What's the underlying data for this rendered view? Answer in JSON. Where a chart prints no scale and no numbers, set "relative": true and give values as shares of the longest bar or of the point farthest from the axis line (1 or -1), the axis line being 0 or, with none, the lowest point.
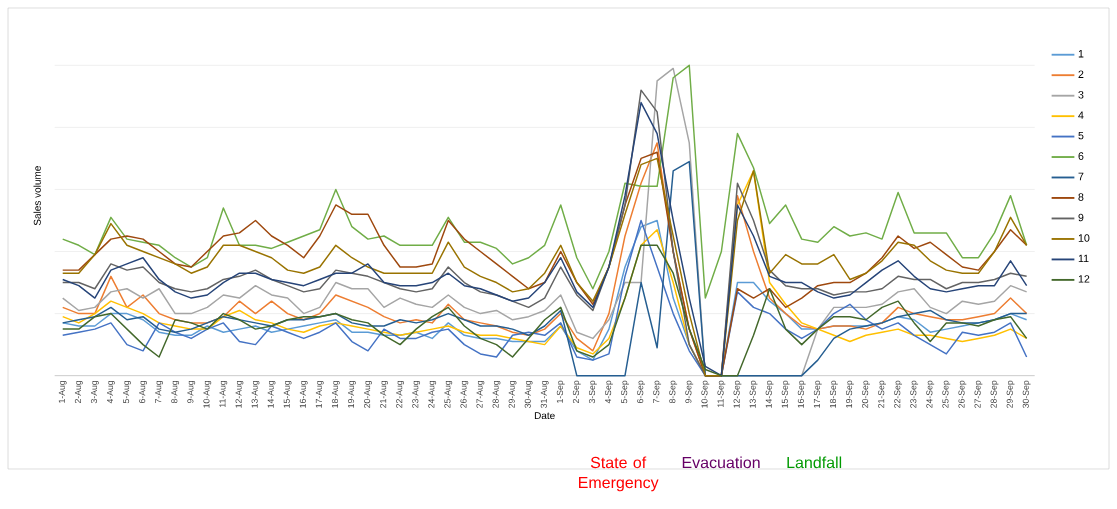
{
  "chart_data": {
    "type": "line",
    "xlabel": "Date",
    "ylabel": "Sales volume",
    "relative": true,
    "grid": "y",
    "legend": "right",
    "categories": [
      "1-Aug",
      "2-Aug",
      "3-Aug",
      "4-Aug",
      "5-Aug",
      "6-Aug",
      "7-Aug",
      "8-Aug",
      "9-Aug",
      "10-Aug",
      "11-Aug",
      "12-Aug",
      "13-Aug",
      "14-Aug",
      "15-Aug",
      "16-Aug",
      "17-Aug",
      "18-Aug",
      "19-Aug",
      "20-Aug",
      "21-Aug",
      "22-Aug",
      "23-Aug",
      "24-Aug",
      "25-Aug",
      "26-Aug",
      "27-Aug",
      "28-Aug",
      "29-Aug",
      "30-Aug",
      "31-Aug",
      "1-Sep",
      "2-Sep",
      "3-Sep",
      "4-Sep",
      "5-Sep",
      "6-Sep",
      "7-Sep",
      "8-Sep",
      "9-Sep",
      "10-Sep",
      "11-Sep",
      "12-Sep",
      "13-Sep",
      "14-Sep",
      "15-Sep",
      "16-Sep",
      "17-Sep",
      "18-Sep",
      "19-Sep",
      "20-Sep",
      "21-Sep",
      "22-Sep",
      "23-Sep",
      "24-Sep",
      "25-Sep",
      "26-Sep",
      "27-Sep",
      "28-Sep",
      "29-Sep",
      "30-Sep"
    ],
    "series": [
      {
        "name": "1",
        "color": "#5b9bd5",
        "values": [
          0.17,
          0.16,
          0.16,
          0.2,
          0.2,
          0.18,
          0.14,
          0.13,
          0.13,
          0.16,
          0.14,
          0.15,
          0.16,
          0.14,
          0.15,
          0.16,
          0.17,
          0.18,
          0.14,
          0.14,
          0.13,
          0.13,
          0.14,
          0.12,
          0.17,
          0.13,
          0.12,
          0.12,
          0.11,
          0.11,
          0.11,
          0.16,
          0.08,
          0.05,
          0.15,
          0.35,
          0.48,
          0.5,
          0.25,
          0.1,
          0,
          0,
          0.3,
          0.3,
          0.24,
          0.2,
          0.15,
          0.15,
          0.16,
          0.16,
          0.16,
          0.17,
          0.19,
          0.18,
          0.14,
          0.15,
          0.16,
          0.17,
          0.18,
          0.2,
          0.18
        ]
      },
      {
        "name": "2",
        "color": "#ed7d31",
        "values": [
          0.22,
          0.2,
          0.2,
          0.32,
          0.22,
          0.26,
          0.2,
          0.18,
          0.17,
          0.17,
          0.19,
          0.24,
          0.2,
          0.24,
          0.2,
          0.18,
          0.2,
          0.26,
          0.24,
          0.22,
          0.19,
          0.17,
          0.18,
          0.17,
          0.23,
          0.18,
          0.17,
          0.16,
          0.14,
          0.13,
          0.15,
          0.2,
          0.12,
          0.08,
          0.2,
          0.45,
          0.62,
          0.75,
          0.4,
          0.15,
          0,
          0,
          0.58,
          0.4,
          0.25,
          0.2,
          0.16,
          0.15,
          0.16,
          0.16,
          0.15,
          0.17,
          0.22,
          0.2,
          0.19,
          0.18,
          0.18,
          0.19,
          0.2,
          0.25,
          0.2
        ]
      },
      {
        "name": "3",
        "color": "#a5a5a5",
        "values": [
          0.25,
          0.21,
          0.22,
          0.27,
          0.28,
          0.25,
          0.28,
          0.2,
          0.2,
          0.22,
          0.26,
          0.25,
          0.29,
          0.26,
          0.25,
          0.2,
          0.22,
          0.3,
          0.28,
          0.28,
          0.22,
          0.25,
          0.23,
          0.22,
          0.26,
          0.22,
          0.2,
          0.21,
          0.18,
          0.19,
          0.21,
          0.26,
          0.14,
          0.12,
          0.18,
          0.3,
          0.3,
          0.95,
          0.99,
          0.75,
          0,
          0,
          0,
          0,
          0,
          0,
          0,
          0.15,
          0.22,
          0.22,
          0.22,
          0.23,
          0.27,
          0.28,
          0.22,
          0.2,
          0.24,
          0.23,
          0.24,
          0.29,
          0.27
        ]
      },
      {
        "name": "4",
        "color": "#ffc000",
        "values": [
          0.19,
          0.17,
          0.2,
          0.24,
          0.22,
          0.2,
          0.17,
          0.16,
          0.15,
          0.15,
          0.19,
          0.21,
          0.18,
          0.17,
          0.15,
          0.14,
          0.16,
          0.17,
          0.16,
          0.15,
          0.14,
          0.13,
          0.14,
          0.15,
          0.16,
          0.14,
          0.13,
          0.13,
          0.12,
          0.11,
          0.1,
          0.16,
          0.09,
          0.07,
          0.12,
          0.25,
          0.42,
          0.47,
          0.3,
          0.1,
          0,
          0,
          0.55,
          0.66,
          0.3,
          0.23,
          0.17,
          0.15,
          0.13,
          0.11,
          0.13,
          0.14,
          0.15,
          0.13,
          0.13,
          0.12,
          0.11,
          0.12,
          0.13,
          0.15,
          0.12
        ]
      },
      {
        "name": "5",
        "color": "#4472c4",
        "values": [
          0.13,
          0.14,
          0.15,
          0.17,
          0.1,
          0.08,
          0.17,
          0.14,
          0.12,
          0.15,
          0.17,
          0.11,
          0.1,
          0.16,
          0.14,
          0.12,
          0.14,
          0.17,
          0.11,
          0.08,
          0.15,
          0.12,
          0.12,
          0.14,
          0.15,
          0.1,
          0.07,
          0.06,
          0.13,
          0.14,
          0.13,
          0.17,
          0.06,
          0.05,
          0.07,
          0.32,
          0.5,
          0.35,
          0.2,
          0.08,
          0,
          0,
          0.27,
          0.22,
          0.2,
          0.15,
          0.12,
          0.15,
          0.2,
          0.23,
          0.18,
          0.15,
          0.17,
          0.13,
          0.1,
          0.07,
          0.14,
          0.13,
          0.14,
          0.17,
          0.06
        ]
      },
      {
        "name": "6",
        "color": "#70ad47",
        "values": [
          0.44,
          0.42,
          0.39,
          0.51,
          0.44,
          0.43,
          0.42,
          0.38,
          0.35,
          0.38,
          0.54,
          0.42,
          0.42,
          0.41,
          0.43,
          0.45,
          0.47,
          0.6,
          0.48,
          0.44,
          0.45,
          0.42,
          0.42,
          0.42,
          0.51,
          0.43,
          0.43,
          0.41,
          0.36,
          0.38,
          0.42,
          0.55,
          0.38,
          0.28,
          0.4,
          0.62,
          0.61,
          0.61,
          0.96,
          1.0,
          0.25,
          0.4,
          0.78,
          0.67,
          0.49,
          0.55,
          0.44,
          0.43,
          0.48,
          0.45,
          0.46,
          0.44,
          0.59,
          0.46,
          0.46,
          0.46,
          0.38,
          0.38,
          0.46,
          0.58,
          0.42
        ]
      },
      {
        "name": "7",
        "color": "#255e91",
        "values": [
          0.17,
          0.18,
          0.19,
          0.22,
          0.18,
          0.19,
          0.15,
          0.14,
          0.15,
          0.17,
          0.19,
          0.18,
          0.17,
          0.16,
          0.18,
          0.18,
          0.19,
          0.2,
          0.17,
          0.16,
          0.16,
          0.18,
          0.17,
          0.18,
          0.2,
          0.18,
          0.16,
          0.16,
          0.15,
          0.13,
          0.16,
          0.21,
          0,
          0,
          0,
          0,
          0.3,
          0.09,
          0.66,
          0.69,
          0,
          0,
          0,
          0,
          0,
          0,
          0,
          0.05,
          0.12,
          0.15,
          0.16,
          0.17,
          0.19,
          0.2,
          0.21,
          0.18,
          0.17,
          0.17,
          0.18,
          0.2,
          0.2
        ]
      },
      {
        "name": "8",
        "color": "#9e480e",
        "values": [
          0.34,
          0.34,
          0.39,
          0.44,
          0.45,
          0.44,
          0.4,
          0.36,
          0.35,
          0.4,
          0.45,
          0.46,
          0.5,
          0.45,
          0.42,
          0.38,
          0.45,
          0.55,
          0.52,
          0.52,
          0.42,
          0.35,
          0.35,
          0.36,
          0.5,
          0.44,
          0.4,
          0.36,
          0.32,
          0.28,
          0.3,
          0.4,
          0.3,
          0.23,
          0.35,
          0.55,
          0.7,
          0.72,
          0.4,
          0.15,
          0,
          0,
          0.28,
          0.25,
          0.28,
          0.22,
          0.25,
          0.29,
          0.3,
          0.3,
          0.33,
          0.38,
          0.45,
          0.41,
          0.43,
          0.39,
          0.35,
          0.34,
          0.4,
          0.47,
          0.42
        ]
      },
      {
        "name": "9",
        "color": "#636363",
        "values": [
          0.3,
          0.3,
          0.28,
          0.36,
          0.34,
          0.35,
          0.3,
          0.28,
          0.27,
          0.28,
          0.31,
          0.32,
          0.34,
          0.31,
          0.29,
          0.27,
          0.28,
          0.34,
          0.33,
          0.32,
          0.3,
          0.28,
          0.27,
          0.28,
          0.35,
          0.3,
          0.27,
          0.26,
          0.24,
          0.22,
          0.25,
          0.35,
          0.26,
          0.21,
          0.35,
          0.55,
          0.92,
          0.85,
          0.4,
          0.1,
          0,
          0,
          0.62,
          0.5,
          0.34,
          0.29,
          0.28,
          0.28,
          0.26,
          0.27,
          0.27,
          0.28,
          0.32,
          0.31,
          0.31,
          0.28,
          0.3,
          0.3,
          0.31,
          0.33,
          0.32
        ]
      },
      {
        "name": "10",
        "color": "#997300",
        "values": [
          0.33,
          0.33,
          0.39,
          0.49,
          0.42,
          0.4,
          0.38,
          0.36,
          0.33,
          0.35,
          0.42,
          0.42,
          0.4,
          0.38,
          0.34,
          0.33,
          0.35,
          0.42,
          0.38,
          0.35,
          0.33,
          0.33,
          0.33,
          0.33,
          0.43,
          0.35,
          0.32,
          0.3,
          0.27,
          0.28,
          0.33,
          0.42,
          0.3,
          0.24,
          0.35,
          0.52,
          0.68,
          0.7,
          0.45,
          0.2,
          0,
          0,
          0.5,
          0.66,
          0.33,
          0.39,
          0.36,
          0.36,
          0.39,
          0.31,
          0.33,
          0.37,
          0.43,
          0.42,
          0.37,
          0.34,
          0.33,
          0.33,
          0.4,
          0.51,
          0.42
        ]
      },
      {
        "name": "11",
        "color": "#264478",
        "values": [
          0.31,
          0.29,
          0.25,
          0.34,
          0.36,
          0.38,
          0.31,
          0.27,
          0.25,
          0.26,
          0.3,
          0.33,
          0.33,
          0.31,
          0.3,
          0.29,
          0.31,
          0.33,
          0.33,
          0.36,
          0.3,
          0.29,
          0.29,
          0.3,
          0.33,
          0.29,
          0.28,
          0.26,
          0.24,
          0.25,
          0.3,
          0.38,
          0.27,
          0.22,
          0.35,
          0.58,
          0.88,
          0.78,
          0.5,
          0.25,
          0.03,
          0,
          0.55,
          0.45,
          0.32,
          0.3,
          0.3,
          0.27,
          0.25,
          0.26,
          0.3,
          0.34,
          0.37,
          0.32,
          0.28,
          0.27,
          0.28,
          0.29,
          0.29,
          0.37,
          0.29
        ]
      },
      {
        "name": "12",
        "color": "#43682b",
        "values": [
          0.15,
          0.15,
          0.19,
          0.2,
          0.15,
          0.1,
          0.06,
          0.18,
          0.17,
          0.15,
          0.2,
          0.18,
          0.15,
          0.16,
          0.18,
          0.19,
          0.19,
          0.2,
          0.18,
          0.17,
          0.13,
          0.1,
          0.15,
          0.19,
          0.22,
          0.16,
          0.12,
          0.1,
          0.06,
          0.12,
          0.18,
          0.22,
          0.08,
          0.06,
          0.1,
          0.25,
          0.42,
          0.42,
          0.33,
          0.15,
          0.02,
          0,
          0,
          0.13,
          0.28,
          0.15,
          0.1,
          0.15,
          0.19,
          0.19,
          0.18,
          0.22,
          0.24,
          0.17,
          0.11,
          0.17,
          0.17,
          0.16,
          0.18,
          0.19,
          0.12
        ]
      }
    ],
    "annotations": [
      "State of Emergency",
      "Evacuation",
      "Landfall"
    ]
  }
}
